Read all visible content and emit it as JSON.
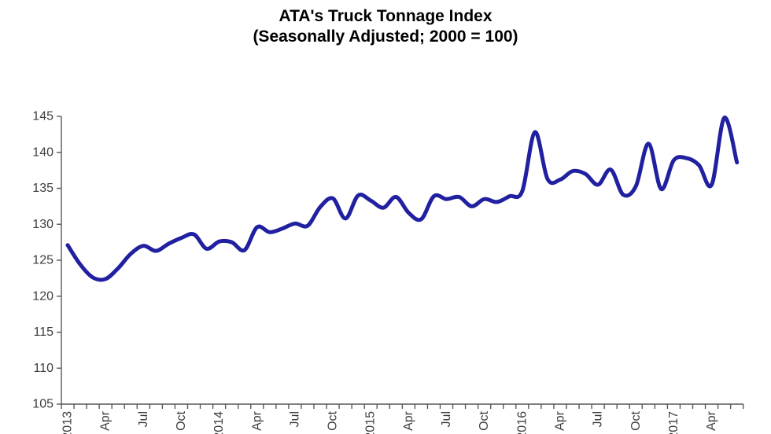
{
  "title": {
    "line1": "ATA's Truck Tonnage Index",
    "line2": "(Seasonally Adjusted; 2000 = 100)"
  },
  "chart_data": {
    "type": "line",
    "title": "ATA's Truck Tonnage Index",
    "subtitle": "(Seasonally Adjusted; 2000 = 100)",
    "x": [
      "Jan-2013",
      "Feb-2013",
      "Mar-2013",
      "Apr-2013",
      "May-2013",
      "Jun-2013",
      "Jul-2013",
      "Aug-2013",
      "Sep-2013",
      "Oct-2013",
      "Nov-2013",
      "Dec-2013",
      "Jan-2014",
      "Feb-2014",
      "Mar-2014",
      "Apr-2014",
      "May-2014",
      "Jun-2014",
      "Jul-2014",
      "Aug-2014",
      "Sep-2014",
      "Oct-2014",
      "Nov-2014",
      "Dec-2014",
      "Jan-2015",
      "Feb-2015",
      "Mar-2015",
      "Apr-2015",
      "May-2015",
      "Jun-2015",
      "Jul-2015",
      "Aug-2015",
      "Sep-2015",
      "Oct-2015",
      "Nov-2015",
      "Dec-2015",
      "Jan-2016",
      "Feb-2016",
      "Mar-2016",
      "Apr-2016",
      "May-2016",
      "Jun-2016",
      "Jul-2016",
      "Aug-2016",
      "Sep-2016",
      "Oct-2016",
      "Nov-2016",
      "Dec-2016",
      "Jan-2017",
      "Feb-2017",
      "Mar-2017",
      "Apr-2017",
      "May-2017",
      "Jun-2017"
    ],
    "series": [
      {
        "name": "Truck Tonnage Index (SA, 2000 = 100)",
        "values": [
          127.1,
          124.4,
          122.6,
          122.4,
          123.9,
          125.9,
          127.0,
          126.3,
          127.3,
          128.1,
          128.6,
          126.6,
          127.6,
          127.5,
          126.4,
          129.6,
          128.9,
          129.4,
          130.1,
          129.8,
          132.4,
          133.6,
          130.8,
          134.0,
          133.3,
          132.3,
          133.8,
          131.6,
          130.7,
          133.9,
          133.5,
          133.8,
          132.5,
          133.5,
          133.1,
          133.9,
          134.6,
          142.8,
          136.3,
          136.2,
          137.4,
          137.0,
          135.5,
          137.6,
          134.1,
          135.3,
          141.2,
          134.9,
          138.9,
          139.2,
          138.2,
          135.5,
          144.8,
          138.6
        ]
      }
    ],
    "xticks": [
      [
        0,
        "2013"
      ],
      [
        3,
        "Apr"
      ],
      [
        6,
        "Jul"
      ],
      [
        9,
        "Oct"
      ],
      [
        12,
        "2014"
      ],
      [
        15,
        "Apr"
      ],
      [
        18,
        "Jul"
      ],
      [
        21,
        "Oct"
      ],
      [
        24,
        "2015"
      ],
      [
        27,
        "Apr"
      ],
      [
        30,
        "Jul"
      ],
      [
        33,
        "Oct"
      ],
      [
        36,
        "2016"
      ],
      [
        39,
        "Apr"
      ],
      [
        42,
        "Jul"
      ],
      [
        45,
        "Oct"
      ],
      [
        48,
        "2017"
      ],
      [
        51,
        "Apr"
      ]
    ],
    "ylim": [
      105,
      145
    ],
    "ytick_step": 5,
    "ytick_labels": [
      "105",
      "110",
      "115",
      "120",
      "125",
      "130",
      "135",
      "140",
      "145"
    ],
    "grid": false,
    "legend": "none",
    "smoothed": true,
    "line_color": "#2020A0",
    "axis_color": "#595959",
    "tick_label_color": "#3d3d3d",
    "title_color": "#000000"
  }
}
